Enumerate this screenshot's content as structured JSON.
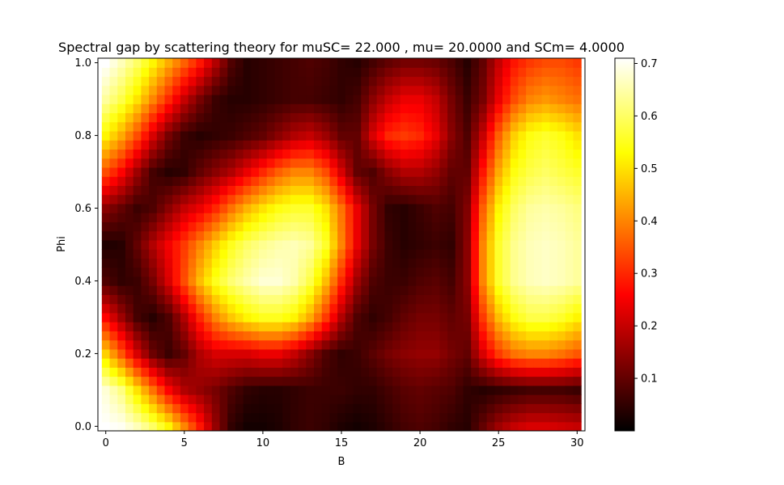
{
  "chart_data": {
    "type": "heatmap",
    "title": "Spectral gap by scattering theory for muSC=  22.000 , mu= 20.0000 and SCm=  4.0000",
    "xlabel": "B",
    "ylabel": "Phi",
    "xlim": [
      -0.5,
      30.5
    ],
    "ylim": [
      -0.0125,
      1.0125
    ],
    "x_ticks": [
      0,
      5,
      10,
      15,
      20,
      25,
      30
    ],
    "x_tick_labels": [
      "0",
      "5",
      "10",
      "15",
      "20",
      "25",
      "30"
    ],
    "y_ticks": [
      0.0,
      0.2,
      0.4,
      0.6,
      0.8,
      1.0
    ],
    "y_tick_labels": [
      "0.0",
      "0.2",
      "0.4",
      "0.6",
      "0.8",
      "1.0"
    ],
    "x_values": [
      0,
      1,
      2,
      3,
      4,
      5,
      6,
      7,
      8,
      9,
      10,
      11,
      12,
      13,
      14,
      15,
      16,
      17,
      18,
      19,
      20,
      21,
      22,
      23,
      24,
      25,
      26,
      27,
      28,
      29,
      30
    ],
    "y_values": [
      0.0,
      0.1,
      0.2,
      0.3,
      0.4,
      0.5,
      0.6,
      0.7,
      0.8,
      0.9,
      1.0
    ],
    "z_values": [
      [
        0.71,
        0.7,
        0.66,
        0.6,
        0.52,
        0.4,
        0.28,
        0.15,
        0.05,
        0.02,
        0.02,
        0.03,
        0.05,
        0.06,
        0.05,
        0.03,
        0.02,
        0.03,
        0.05,
        0.07,
        0.08,
        0.07,
        0.05,
        0.04,
        0.1,
        0.16,
        0.2,
        0.22,
        0.22,
        0.21,
        0.2
      ],
      [
        0.68,
        0.62,
        0.5,
        0.38,
        0.26,
        0.18,
        0.15,
        0.12,
        0.08,
        0.05,
        0.04,
        0.04,
        0.05,
        0.06,
        0.06,
        0.06,
        0.05,
        0.05,
        0.07,
        0.09,
        0.1,
        0.09,
        0.08,
        0.05,
        0.04,
        0.05,
        0.06,
        0.07,
        0.07,
        0.07,
        0.06
      ],
      [
        0.48,
        0.35,
        0.22,
        0.11,
        0.06,
        0.1,
        0.18,
        0.22,
        0.22,
        0.22,
        0.24,
        0.24,
        0.2,
        0.14,
        0.08,
        0.05,
        0.06,
        0.09,
        0.12,
        0.14,
        0.15,
        0.15,
        0.12,
        0.1,
        0.22,
        0.32,
        0.38,
        0.4,
        0.4,
        0.38,
        0.35
      ],
      [
        0.26,
        0.16,
        0.07,
        0.04,
        0.08,
        0.18,
        0.3,
        0.4,
        0.47,
        0.52,
        0.55,
        0.55,
        0.52,
        0.44,
        0.32,
        0.18,
        0.08,
        0.05,
        0.07,
        0.1,
        0.12,
        0.12,
        0.1,
        0.12,
        0.32,
        0.46,
        0.54,
        0.58,
        0.58,
        0.56,
        0.52
      ],
      [
        0.08,
        0.05,
        0.06,
        0.12,
        0.22,
        0.34,
        0.46,
        0.55,
        0.61,
        0.65,
        0.68,
        0.68,
        0.65,
        0.58,
        0.46,
        0.3,
        0.16,
        0.08,
        0.06,
        0.06,
        0.08,
        0.09,
        0.07,
        0.14,
        0.4,
        0.56,
        0.63,
        0.66,
        0.67,
        0.66,
        0.64
      ],
      [
        0.03,
        0.04,
        0.1,
        0.18,
        0.25,
        0.32,
        0.4,
        0.48,
        0.55,
        0.6,
        0.63,
        0.65,
        0.66,
        0.64,
        0.56,
        0.4,
        0.24,
        0.12,
        0.06,
        0.04,
        0.05,
        0.06,
        0.05,
        0.14,
        0.4,
        0.56,
        0.63,
        0.66,
        0.67,
        0.66,
        0.64
      ],
      [
        0.14,
        0.1,
        0.06,
        0.08,
        0.14,
        0.2,
        0.24,
        0.3,
        0.38,
        0.45,
        0.5,
        0.54,
        0.56,
        0.56,
        0.5,
        0.38,
        0.24,
        0.12,
        0.05,
        0.04,
        0.06,
        0.08,
        0.07,
        0.13,
        0.36,
        0.52,
        0.6,
        0.64,
        0.65,
        0.64,
        0.62
      ],
      [
        0.34,
        0.26,
        0.16,
        0.07,
        0.04,
        0.05,
        0.1,
        0.14,
        0.18,
        0.24,
        0.3,
        0.36,
        0.4,
        0.4,
        0.34,
        0.22,
        0.1,
        0.08,
        0.14,
        0.18,
        0.18,
        0.15,
        0.1,
        0.1,
        0.28,
        0.44,
        0.54,
        0.58,
        0.6,
        0.58,
        0.56
      ],
      [
        0.52,
        0.44,
        0.34,
        0.22,
        0.12,
        0.06,
        0.04,
        0.05,
        0.06,
        0.08,
        0.1,
        0.14,
        0.18,
        0.2,
        0.16,
        0.1,
        0.1,
        0.22,
        0.3,
        0.32,
        0.3,
        0.24,
        0.14,
        0.08,
        0.2,
        0.36,
        0.48,
        0.54,
        0.56,
        0.54,
        0.5
      ],
      [
        0.64,
        0.58,
        0.5,
        0.4,
        0.3,
        0.2,
        0.12,
        0.06,
        0.04,
        0.04,
        0.05,
        0.06,
        0.07,
        0.07,
        0.06,
        0.05,
        0.07,
        0.14,
        0.2,
        0.24,
        0.24,
        0.2,
        0.12,
        0.06,
        0.12,
        0.24,
        0.34,
        0.4,
        0.42,
        0.4,
        0.38
      ],
      [
        0.71,
        0.66,
        0.6,
        0.52,
        0.44,
        0.36,
        0.28,
        0.18,
        0.08,
        0.04,
        0.05,
        0.06,
        0.07,
        0.08,
        0.07,
        0.05,
        0.04,
        0.07,
        0.1,
        0.12,
        0.12,
        0.11,
        0.08,
        0.04,
        0.1,
        0.2,
        0.28,
        0.32,
        0.34,
        0.34,
        0.32
      ]
    ],
    "colormap": "hot",
    "colorbar": {
      "min": 0.0,
      "max": 0.71,
      "ticks": [
        0.1,
        0.2,
        0.3,
        0.4,
        0.5,
        0.6,
        0.7
      ],
      "tick_labels": [
        "0.1",
        "0.2",
        "0.3",
        "0.4",
        "0.5",
        "0.6",
        "0.7"
      ]
    },
    "grid": false
  }
}
